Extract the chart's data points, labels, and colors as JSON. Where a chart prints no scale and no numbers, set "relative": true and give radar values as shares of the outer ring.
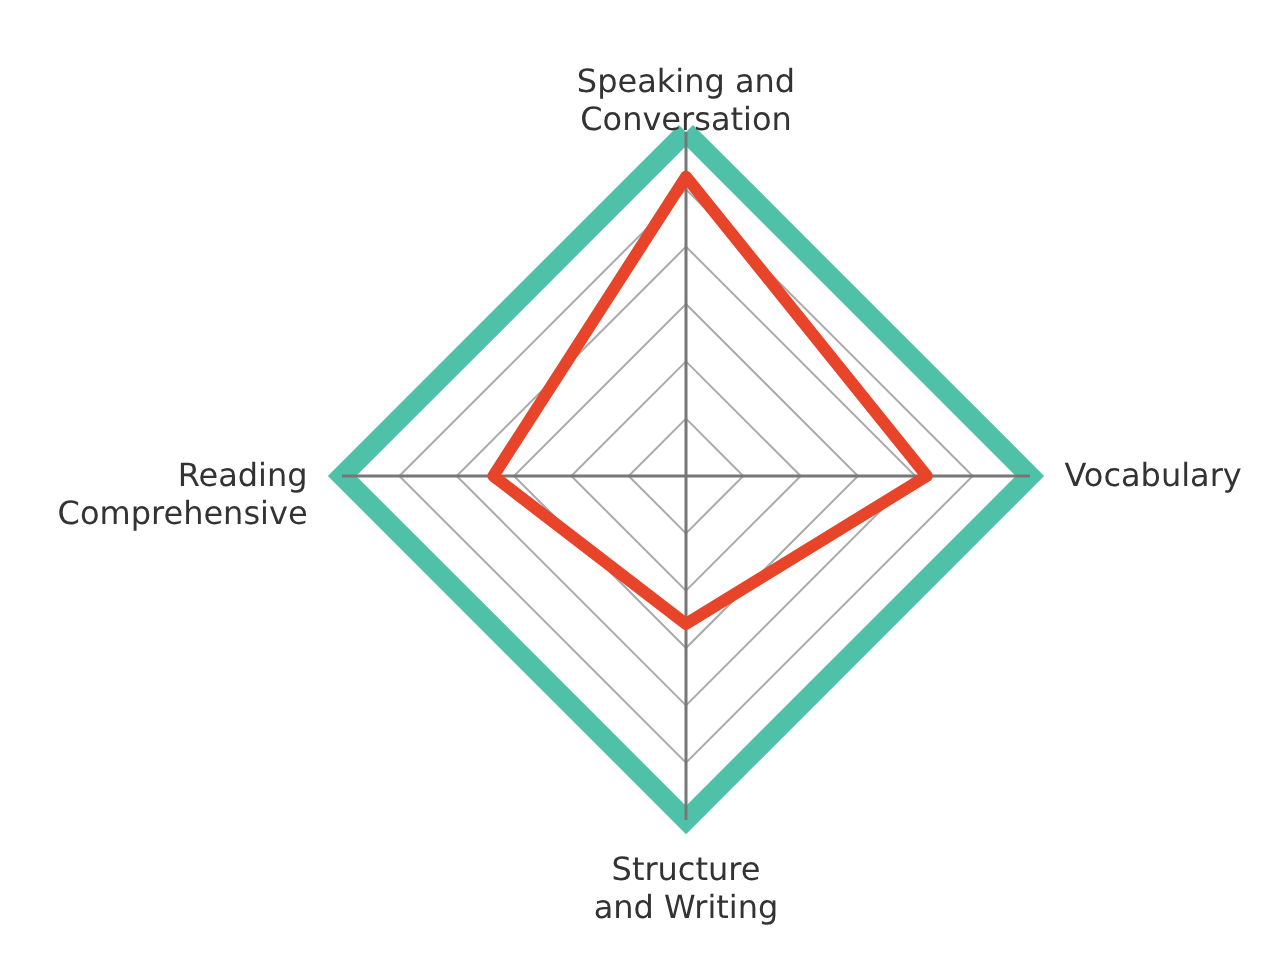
{
  "chart_data": {
    "type": "radar",
    "relative": true,
    "grid": true,
    "categories": [
      "Speaking and Conversation",
      "Vocabulary",
      "Structure and Writing",
      "Reading Comprehensive"
    ],
    "series": [
      {
        "color": "#e8442a",
        "values": [
          0.87,
          0.7,
          0.43,
          0.56
        ]
      }
    ]
  }
}
